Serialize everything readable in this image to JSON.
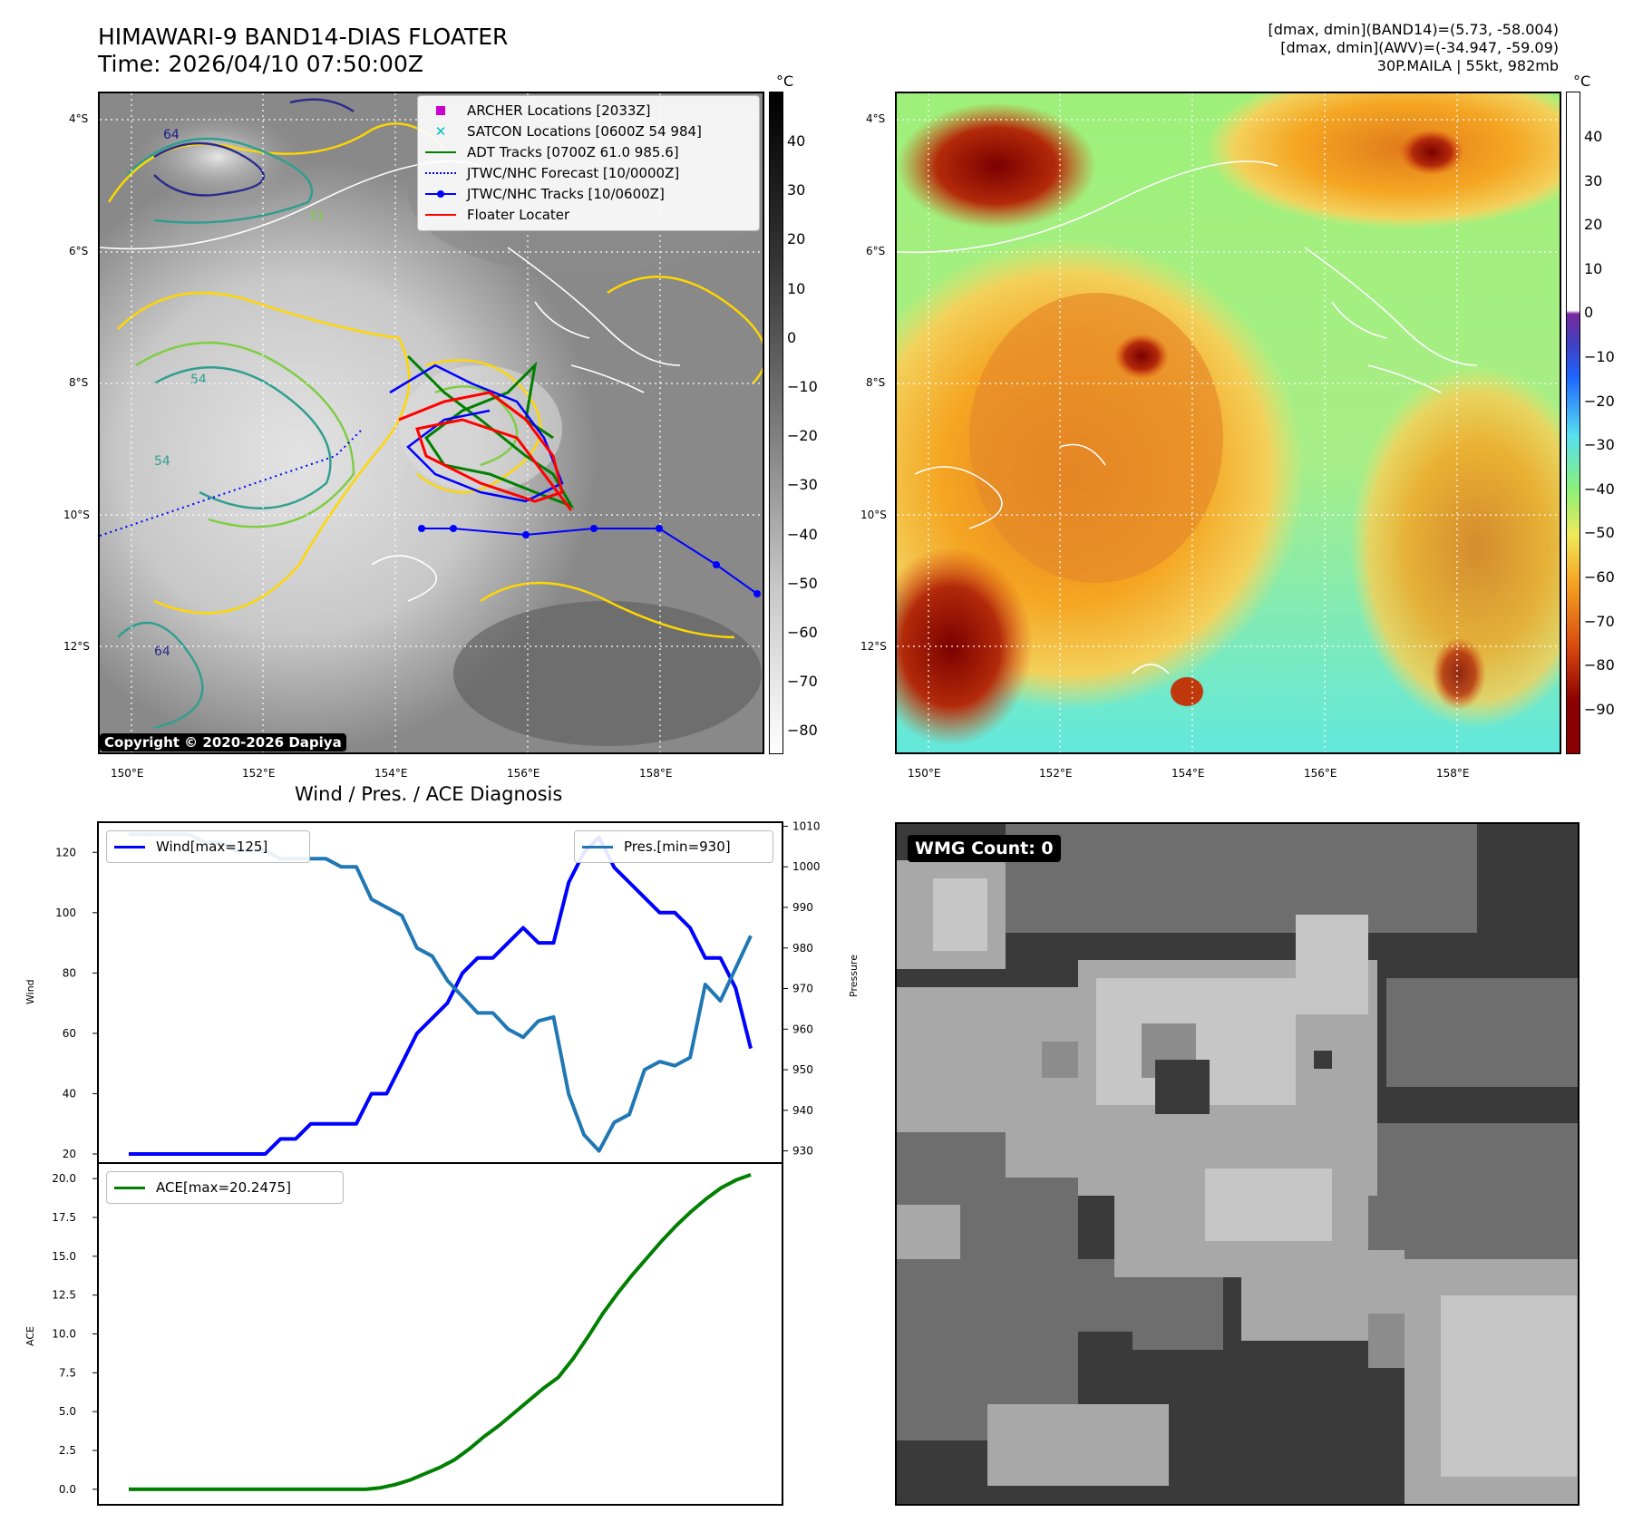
{
  "header": {
    "title_line1": "HIMAWARI-9 BAND14-DIAS FLOATER",
    "title_line2": "Time: 2026/04/10 07:50:00Z",
    "info_line1": "[dmax, dmin](BAND14)=(5.73, -58.004)",
    "info_line2": "[dmax, dmin](AWV)=(-34.947, -59.09)",
    "info_line3": "30P.MAILA | 55kt, 982mb"
  },
  "map_axes": {
    "lat_ticks": [
      "4°S",
      "6°S",
      "8°S",
      "10°S",
      "12°S"
    ],
    "lon_ticks": [
      "150°E",
      "152°E",
      "154°E",
      "156°E",
      "158°E"
    ]
  },
  "ir_panel": {
    "copyright": "Copyright © 2020-2026 Dapiya",
    "legend": [
      {
        "label": "ARCHER Locations [2033Z]",
        "color": "#cc00cc",
        "marker": "square"
      },
      {
        "label": "SATCON Locations [0600Z 54 984]",
        "color": "#00bfbf",
        "marker": "x"
      },
      {
        "label": "ADT Tracks [0700Z 61.0 985.6]",
        "color": "#007f00",
        "marker": "line"
      },
      {
        "label": "JTWC/NHC Forecast [10/0000Z]",
        "color": "#0000ff",
        "marker": "dotted"
      },
      {
        "label": "JTWC/NHC Tracks [10/0600Z]",
        "color": "#0000ff",
        "marker": "line-dot"
      },
      {
        "label": "Floater Locater",
        "color": "#ff0000",
        "marker": "line"
      }
    ],
    "colorbar": {
      "unit": "°C",
      "ticks": [
        "40",
        "30",
        "20",
        "10",
        "0",
        "−10",
        "−20",
        "−30",
        "−40",
        "−50",
        "−60",
        "−70",
        "−80"
      ],
      "colors": [
        "#000000",
        "#ffffff"
      ]
    },
    "contour_labels": [
      "64",
      "31",
      "54",
      "54",
      "64"
    ],
    "contour_colors": [
      "#ffd700",
      "#7ccd3f",
      "#2e9e8f",
      "#2a2a8c",
      "#ffffff"
    ]
  },
  "awv_panel": {
    "colorbar": {
      "unit": "°C",
      "ticks": [
        "40",
        "30",
        "20",
        "10",
        "0",
        "−10",
        "−20",
        "−30",
        "−40",
        "−50",
        "−60",
        "−70",
        "−80",
        "−90"
      ],
      "colors": [
        "#ffffff",
        "#7a2aa0",
        "#1e64ff",
        "#56e0f0",
        "#8af07a",
        "#f0e85a",
        "#f5a623",
        "#d9480f",
        "#8b0000"
      ]
    }
  },
  "wmg_panel": {
    "badge": "WMG Count: 0"
  },
  "chart_data": [
    {
      "type": "line",
      "title": "Wind / Pres. / ACE Diagnosis",
      "ylabel": "Wind",
      "ylabel_right": "Pressure",
      "ylim": [
        17,
        130
      ],
      "ylim_right": [
        927,
        1011
      ],
      "yticks": [
        "20",
        "40",
        "60",
        "80",
        "100",
        "120"
      ],
      "yticks_right": [
        "930",
        "940",
        "950",
        "960",
        "970",
        "980",
        "990",
        "1000",
        "1010"
      ],
      "series": [
        {
          "name": "Wind[max=125]",
          "color": "#0000ff",
          "values": [
            20,
            20,
            20,
            20,
            20,
            20,
            20,
            20,
            20,
            20,
            25,
            25,
            30,
            30,
            30,
            30,
            40,
            40,
            50,
            60,
            65,
            70,
            80,
            85,
            85,
            90,
            95,
            90,
            90,
            110,
            120,
            125,
            115,
            110,
            105,
            100,
            100,
            95,
            85,
            85,
            75,
            55
          ]
        },
        {
          "name": "Pres.[min=930]",
          "color": "#1f77b4",
          "axis": "right",
          "values": [
            1008,
            1008,
            1008,
            1008,
            1008,
            1006,
            1006,
            1004,
            1004,
            1004,
            1002,
            1002,
            1002,
            1002,
            1000,
            1000,
            992,
            990,
            988,
            980,
            978,
            972,
            968,
            964,
            964,
            960,
            958,
            962,
            963,
            944,
            934,
            930,
            937,
            939,
            950,
            952,
            951,
            953,
            971,
            967,
            975,
            983
          ]
        }
      ]
    },
    {
      "type": "line",
      "ylabel": "ACE",
      "ylim": [
        -1,
        21
      ],
      "yticks": [
        "0.0",
        "2.5",
        "5.0",
        "7.5",
        "10.0",
        "12.5",
        "15.0",
        "17.5",
        "20.0"
      ],
      "series": [
        {
          "name": "ACE[max=20.2475]",
          "color": "#007f00",
          "values": [
            0,
            0,
            0,
            0,
            0,
            0,
            0,
            0,
            0,
            0,
            0,
            0,
            0,
            0,
            0,
            0,
            0,
            0.1,
            0.3,
            0.6,
            1.0,
            1.4,
            1.9,
            2.6,
            3.4,
            4.1,
            4.9,
            5.7,
            6.5,
            7.2,
            8.4,
            9.8,
            11.3,
            12.6,
            13.8,
            14.9,
            16.0,
            17.0,
            17.9,
            18.7,
            19.4,
            19.9,
            20.2475
          ]
        }
      ]
    }
  ]
}
